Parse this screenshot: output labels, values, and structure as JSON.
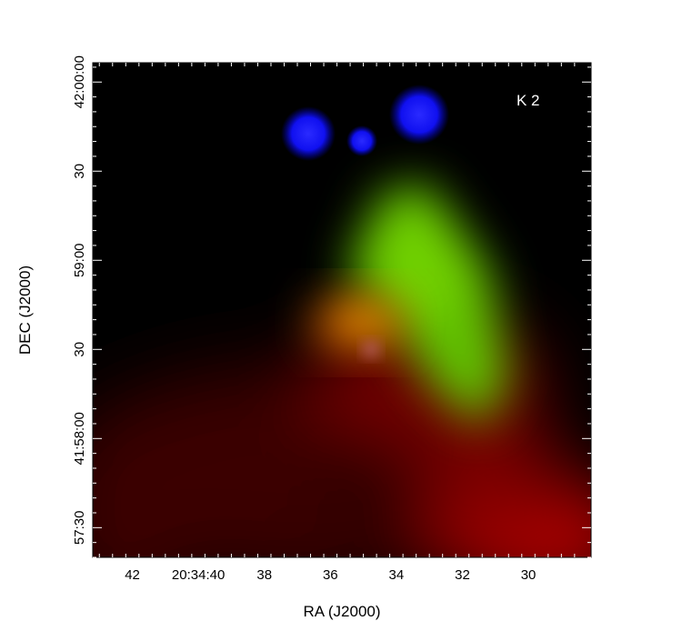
{
  "chart_data": {
    "type": "image",
    "title": "",
    "label": "K 2",
    "xlabel": "RA (J2000)",
    "ylabel": "DEC (J2000)",
    "x_ticks": [
      {
        "label": "42",
        "value_s": 42
      },
      {
        "label": "20:34:40",
        "value_s": 40
      },
      {
        "label": "38",
        "value_s": 38
      },
      {
        "label": "36",
        "value_s": 36
      },
      {
        "label": "34",
        "value_s": 34
      },
      {
        "label": "32",
        "value_s": 32
      },
      {
        "label": "30",
        "value_s": 30
      }
    ],
    "y_ticks": [
      {
        "label": "42:00:00",
        "value_arcsec": 0
      },
      {
        "label": "30",
        "value_arcsec": -30
      },
      {
        "label": "59:00",
        "value_arcsec": -60
      },
      {
        "label": "30",
        "value_arcsec": -90
      },
      {
        "label": "58:00",
        "value_arcsec": -120
      },
      {
        "label": "57:30",
        "value_arcsec": -150
      }
    ],
    "y_tick_full_labels": {
      "58:00": "41:58:00"
    },
    "xlim_s": [
      43.2,
      28.1
    ],
    "ylim_arcsec": [
      6.5,
      -160
    ],
    "channels": {
      "red": "#ff0000",
      "green": "#00ff00",
      "blue": "#0000ff"
    },
    "grid": false
  }
}
